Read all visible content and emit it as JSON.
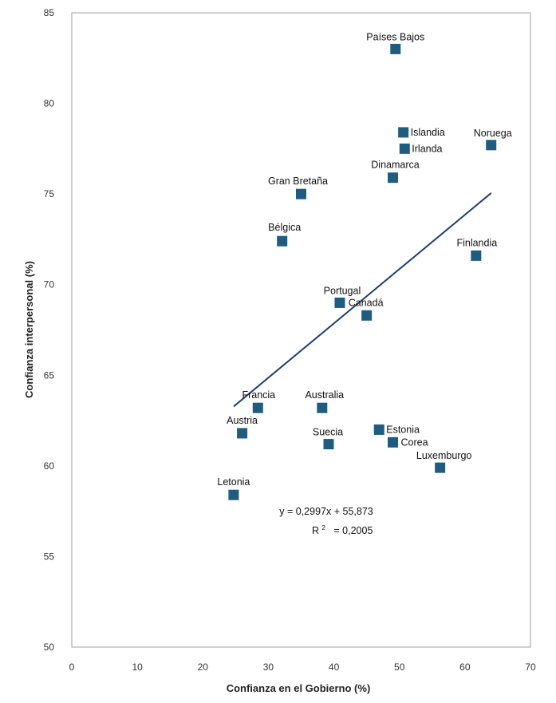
{
  "chart_data": {
    "type": "scatter",
    "title": "",
    "xlabel": "Confianza en el Gobierno (%)",
    "ylabel": "Confianza interpersonal (%)",
    "xlim": [
      0,
      70
    ],
    "ylim": [
      50,
      85
    ],
    "xticks": [
      0,
      10,
      20,
      30,
      40,
      50,
      60,
      70
    ],
    "yticks": [
      50,
      55,
      60,
      65,
      70,
      75,
      80,
      85
    ],
    "grid": false,
    "marker_color": "#1f5c80",
    "trend_color": "#1f3f73",
    "points": [
      {
        "label": "Países Bajos",
        "x": 49.4,
        "y": 83.0
      },
      {
        "label": "Islandia",
        "x": 50.6,
        "y": 78.4
      },
      {
        "label": "Irlanda",
        "x": 50.8,
        "y": 77.5
      },
      {
        "label": "Noruega",
        "x": 64.0,
        "y": 77.7
      },
      {
        "label": "Dinamarca",
        "x": 49.0,
        "y": 75.9
      },
      {
        "label": "Gran Bretaña",
        "x": 35.0,
        "y": 75.0
      },
      {
        "label": "Bélgica",
        "x": 32.1,
        "y": 72.4
      },
      {
        "label": "Finlandia",
        "x": 61.7,
        "y": 71.6
      },
      {
        "label": "Portugal",
        "x": 40.9,
        "y": 69.0
      },
      {
        "label": "Canadá",
        "x": 45.0,
        "y": 68.3
      },
      {
        "label": "Francia",
        "x": 28.4,
        "y": 63.2
      },
      {
        "label": "Australia",
        "x": 38.2,
        "y": 63.2
      },
      {
        "label": "Austria",
        "x": 26.0,
        "y": 61.8
      },
      {
        "label": "Estonia",
        "x": 46.9,
        "y": 62.0
      },
      {
        "label": "Suecia",
        "x": 39.2,
        "y": 61.2
      },
      {
        "label": "Corea",
        "x": 49.0,
        "y": 61.3
      },
      {
        "label": "Luxemburgo",
        "x": 56.2,
        "y": 59.9
      },
      {
        "label": "Letonia",
        "x": 24.7,
        "y": 58.4
      }
    ],
    "trendline": {
      "slope": 0.2997,
      "intercept": 55.873,
      "x_range": [
        24.7,
        64.0
      ],
      "equation": "y = 0,2997x + 55,873",
      "r2_prefix": "R",
      "r2_sup": "2",
      "r2_value": "  = 0,2005"
    }
  }
}
